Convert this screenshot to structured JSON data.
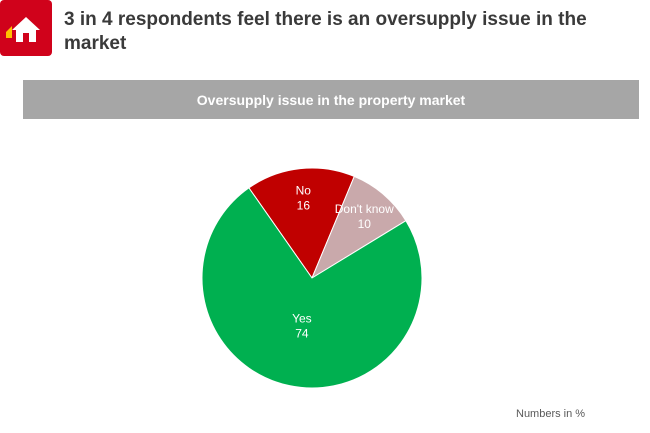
{
  "chart_data": {
    "type": "pie",
    "headline": "3 in 4 respondents feel there is an oversupply issue in the market",
    "title": "Oversupply issue in the property market",
    "categories": [
      "No",
      "Don't know",
      "Yes"
    ],
    "values": [
      16,
      10,
      74
    ],
    "colors": [
      "#c00000",
      "#c9a9ab",
      "#00b050"
    ],
    "note": "Numbers in %"
  }
}
